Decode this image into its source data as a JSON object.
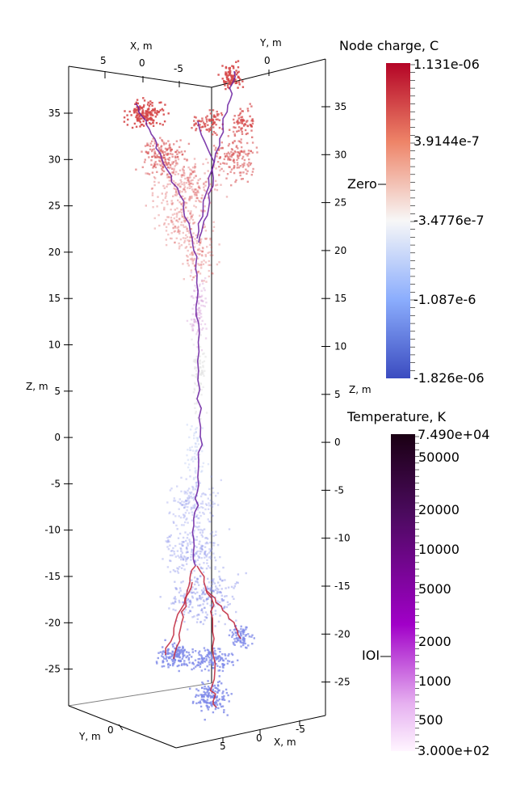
{
  "axes": {
    "x_label": "X, m",
    "y_label": "Y, m",
    "z_label": "Z, m",
    "z_label_right": "Z, m",
    "z_ticks": [
      "35",
      "30",
      "25",
      "20",
      "15",
      "10",
      "5",
      "0",
      "-5",
      "-10",
      "-15",
      "-20",
      "-25"
    ],
    "z_ticks_right": [
      "35",
      "30",
      "25",
      "20",
      "15",
      "10",
      "5",
      "0",
      "-5",
      "-10",
      "-15",
      "-20",
      "-25"
    ],
    "x_ticks_top": [
      "5",
      "0",
      "-5"
    ],
    "y_ticks_top": [
      "0"
    ],
    "x_ticks_bottom": [
      "5",
      "0",
      "-5"
    ],
    "y_ticks_bottom": [
      "0"
    ]
  },
  "colorbars": {
    "charge": {
      "title": "Node charge, C",
      "labels": [
        "1.131e-06",
        "3.9144e-7",
        "-3.4776e-7",
        "-1.087e-6",
        "-1.826e-06"
      ],
      "annotation": "Zero",
      "colors": [
        "#b40426",
        "#ee8468",
        "#f7f7f7",
        "#8badfd",
        "#3b4cc0"
      ]
    },
    "temperature": {
      "title": "Temperature, K",
      "labels": [
        "7.490e+04",
        "50000",
        "20000",
        "10000",
        "5000",
        "2000",
        "1000",
        "500",
        "3.000e+02"
      ],
      "annotation": "IOI",
      "colors": [
        "#1a0013",
        "#4b0a5e",
        "#a100c8",
        "#e6b0f0",
        "#fff5ff"
      ]
    }
  },
  "colors": {
    "positive": "#d6494a",
    "negative": "#7d88e8",
    "neutral": "#e0e0e0",
    "channel_hot": "#6a1fa0",
    "channel_red": "#c0233a"
  }
}
